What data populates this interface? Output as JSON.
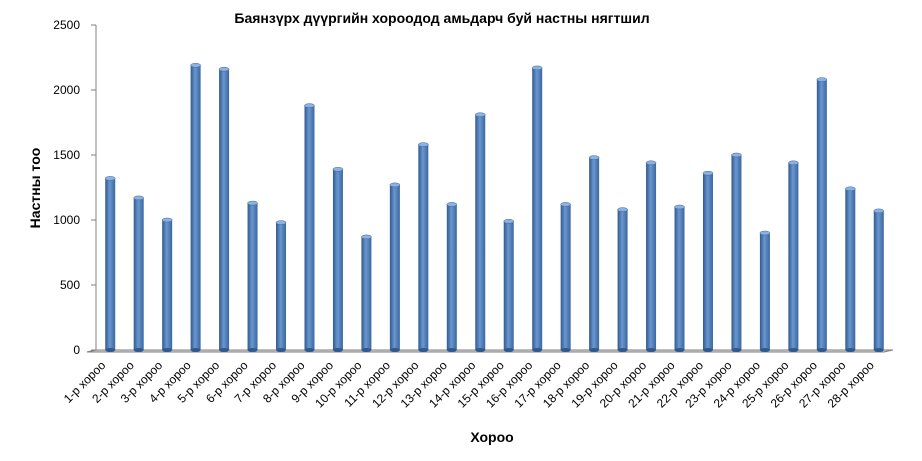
{
  "chart_data": {
    "type": "bar",
    "title": "Баянзүрх дүүргийн хороодод амьдарч буй настны нягтшил",
    "xlabel": "Хороо",
    "ylabel": "Настны тоо",
    "ylim": [
      0,
      2500
    ],
    "yticks": [
      0,
      500,
      1000,
      1500,
      2000,
      2500
    ],
    "grid": false,
    "legend": "none",
    "categories": [
      "1-р хороо",
      "2-р хороо",
      "3-р хороо",
      "4-р хороо",
      "5-р хороо",
      "6-р хороо",
      "7-р хороо",
      "8-р хороо",
      "9-р хороо",
      "10-р хороо",
      "11-р хороо",
      "12-р хороо",
      "13-р хороо",
      "14-р хороо",
      "15-р хороо",
      "16-р хороо",
      "17-р хороо",
      "18-р хороо",
      "19-р хороо",
      "20-р хороо",
      "21-р хороо",
      "22-р хороо",
      "23-р хороо",
      "24-р хороо",
      "25-р хороо",
      "26-р хороо",
      "27-р хороо",
      "28-р хороо"
    ],
    "values": [
      1320,
      1170,
      1000,
      2190,
      2160,
      1130,
      980,
      1880,
      1390,
      870,
      1270,
      1580,
      1120,
      1810,
      990,
      2170,
      1120,
      1480,
      1080,
      1440,
      1100,
      1360,
      1500,
      900,
      1440,
      2080,
      1240,
      1070
    ],
    "colors": {
      "bar": "#4f81bd",
      "bar_dark": "#2c4d75",
      "bar_light": "#7da3d6",
      "axis": "#808080"
    }
  }
}
